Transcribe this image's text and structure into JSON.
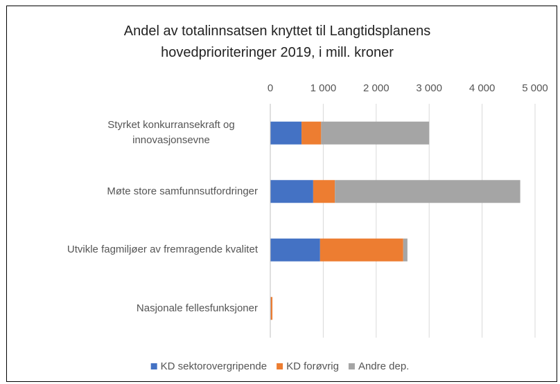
{
  "chart_data": {
    "type": "bar",
    "orientation": "horizontal",
    "stacked": true,
    "title": "Andel av totalinnsatsen knyttet til Langtidsplanens hovedprioriteringer 2019, i mill. kroner",
    "categories": [
      "Styrket konkurransekraft og innovasjonsevne",
      "Møte store samfunnsutfordringer",
      "Utvikle fagmiljøer av fremragende kvalitet",
      "Nasjonale fellesfunksjoner"
    ],
    "series": [
      {
        "name": "KD sektorovergripende",
        "color": "#4472c4",
        "values": [
          590,
          810,
          940,
          10
        ]
      },
      {
        "name": "KD forøvrig",
        "color": "#ed7d31",
        "values": [
          370,
          410,
          1570,
          30
        ]
      },
      {
        "name": "Andre dep.",
        "color": "#a5a5a5",
        "values": [
          2040,
          3500,
          80,
          0
        ]
      }
    ],
    "xlim": [
      0,
      5000
    ],
    "xticks": [
      0,
      {
        "value": 1000,
        "label": "1 000"
      },
      {
        "value": 2000,
        "label": "2 000"
      },
      {
        "value": 3000,
        "label": "3 000"
      },
      {
        "value": 4000,
        "label": "4 000"
      },
      {
        "value": 5000,
        "label": "5 000"
      }
    ],
    "grid": true,
    "legend": "bottom"
  }
}
